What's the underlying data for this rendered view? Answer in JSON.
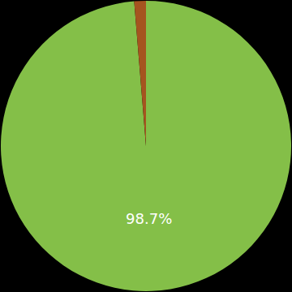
{
  "chart_data": {
    "type": "pie",
    "values": [
      98.7,
      1.3
    ],
    "value_labels": [
      "98.7%",
      null
    ],
    "colors": [
      "#84bf48",
      "#a5541f"
    ],
    "data_labels": true
  }
}
